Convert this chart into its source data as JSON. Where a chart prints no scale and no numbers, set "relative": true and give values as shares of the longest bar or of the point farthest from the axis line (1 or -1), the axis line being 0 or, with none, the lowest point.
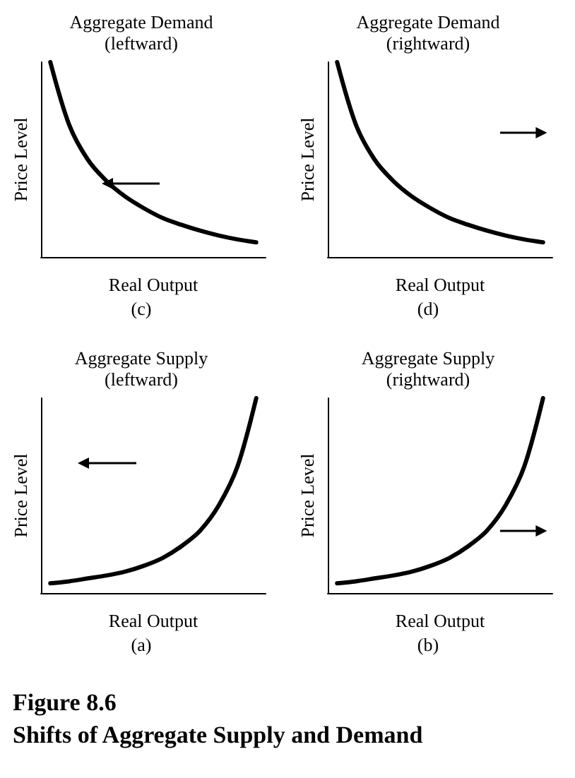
{
  "chart_data": [
    {
      "type": "line",
      "title": "Aggregate Demand",
      "subtitle": "(leftward)",
      "xlabel": "Real Output",
      "ylabel": "Price Level",
      "annotations": [
        "(c)"
      ],
      "relative": true,
      "categories": [
        null,
        null,
        null,
        null,
        null,
        null,
        null,
        null,
        null,
        null,
        null,
        null
      ],
      "series": [
        {
          "color": "#000000",
          "values": [
            1,
            0.68,
            0.5,
            0.39,
            0.31,
            0.25,
            0.2,
            0.165,
            0.135,
            0.11,
            0.09,
            0.075
          ]
        }
      ],
      "grid": false,
      "marker": "none",
      "line_style": "solid"
    },
    {
      "type": "line",
      "title": "Aggregate Demand",
      "subtitle": "(rightward)",
      "xlabel": "Real Output",
      "ylabel": "Price Level",
      "annotations": [
        "(d)"
      ],
      "relative": true,
      "categories": [
        null,
        null,
        null,
        null,
        null,
        null,
        null,
        null,
        null,
        null,
        null,
        null
      ],
      "series": [
        {
          "color": "#000000",
          "values": [
            1,
            0.68,
            0.5,
            0.39,
            0.31,
            0.25,
            0.2,
            0.165,
            0.135,
            0.11,
            0.09,
            0.075
          ]
        }
      ],
      "grid": false,
      "marker": "none",
      "line_style": "solid"
    },
    {
      "type": "line",
      "title": "Aggregate Supply",
      "subtitle": "(leftward)",
      "xlabel": "Real Output",
      "ylabel": "Price Level",
      "annotations": [
        "(a)"
      ],
      "relative": true,
      "categories": [
        null,
        null,
        null,
        null,
        null,
        null,
        null,
        null,
        null,
        null,
        null,
        null
      ],
      "series": [
        {
          "color": "#000000",
          "values": [
            0.05,
            0.06,
            0.075,
            0.09,
            0.11,
            0.14,
            0.18,
            0.24,
            0.32,
            0.45,
            0.65,
            1
          ]
        }
      ],
      "grid": false,
      "marker": "none",
      "line_style": "solid"
    },
    {
      "type": "line",
      "title": "Aggregate Supply",
      "subtitle": "(rightward)",
      "xlabel": "Real Output",
      "ylabel": "Price Level",
      "annotations": [
        "(b)"
      ],
      "relative": true,
      "categories": [
        null,
        null,
        null,
        null,
        null,
        null,
        null,
        null,
        null,
        null,
        null,
        null
      ],
      "series": [
        {
          "color": "#000000",
          "values": [
            0.05,
            0.06,
            0.075,
            0.09,
            0.11,
            0.14,
            0.18,
            0.24,
            0.32,
            0.45,
            0.65,
            1
          ]
        }
      ],
      "grid": false,
      "marker": "none",
      "line_style": "solid"
    },
    {
      "type": "other",
      "title": "Figure 8.6",
      "subtitle": "Shifts of Aggregate Supply and Demand"
    }
  ]
}
